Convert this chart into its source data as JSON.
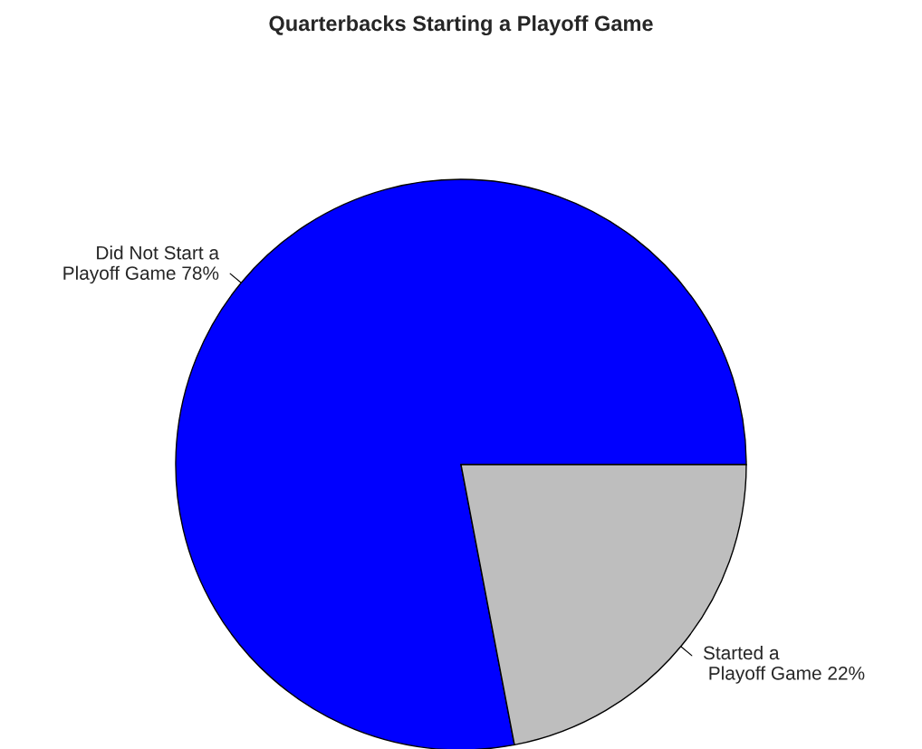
{
  "chart_data": {
    "type": "pie",
    "title": "Quarterbacks Starting a Playoff Game",
    "categories": [
      "Did Not Start a\nPlayoff Game 78%",
      "Started a\n Playoff Game 22%"
    ],
    "values": [
      78,
      22
    ],
    "colors": [
      "#0000ff",
      "#bebebe"
    ]
  }
}
